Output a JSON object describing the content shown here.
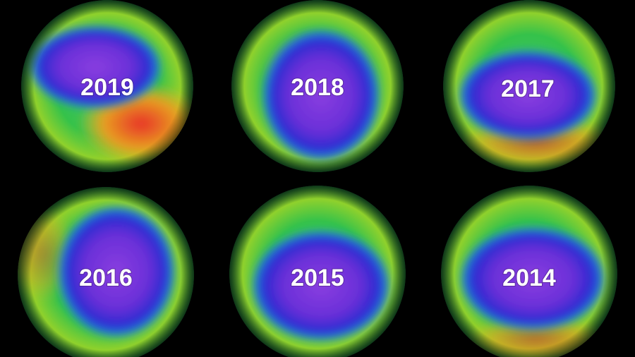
{
  "panels": [
    {
      "label": "2019"
    },
    {
      "label": "2018"
    },
    {
      "label": "2017"
    },
    {
      "label": "2016"
    },
    {
      "label": "2015"
    },
    {
      "label": "2014"
    }
  ]
}
